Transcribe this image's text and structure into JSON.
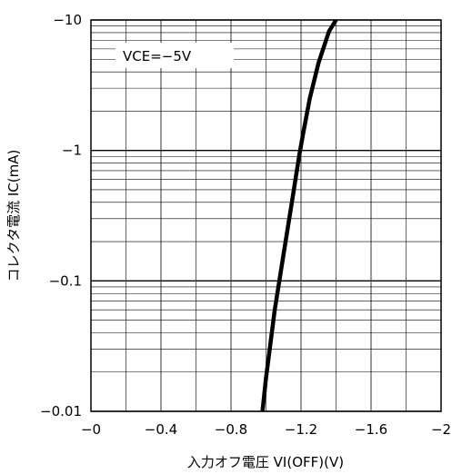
{
  "chart_data": {
    "type": "line",
    "title": "",
    "xlabel": "入力オフ電圧 VI(OFF)(V)",
    "ylabel": "コレクタ電流 IC(mA)",
    "xlim": [
      0,
      -2
    ],
    "ylim": [
      -0.01,
      -10
    ],
    "yscale": "log",
    "grid": true,
    "x_ticks": [
      0,
      -0.4,
      -0.8,
      -1.2,
      -1.6,
      -2
    ],
    "x_tick_labels": [
      "−0",
      "−0.4",
      "−0.8",
      "−1.2",
      "−1.6",
      "−2"
    ],
    "y_ticks": [
      -0.01,
      -0.1,
      -1,
      -10
    ],
    "y_tick_labels": [
      "−0.01",
      "−0.1",
      "−1",
      "−10"
    ],
    "annotation": "VCE=−5V",
    "series": [
      {
        "x": [
          -0.98,
          -1.0,
          -1.05,
          -1.1,
          -1.15,
          -1.19,
          -1.21,
          -1.25,
          -1.3,
          -1.36,
          -1.4
        ],
        "y": [
          -0.01,
          -0.018,
          -0.06,
          -0.16,
          -0.42,
          -0.92,
          -1.3,
          -2.5,
          -4.7,
          -8.2,
          -10
        ]
      }
    ]
  }
}
